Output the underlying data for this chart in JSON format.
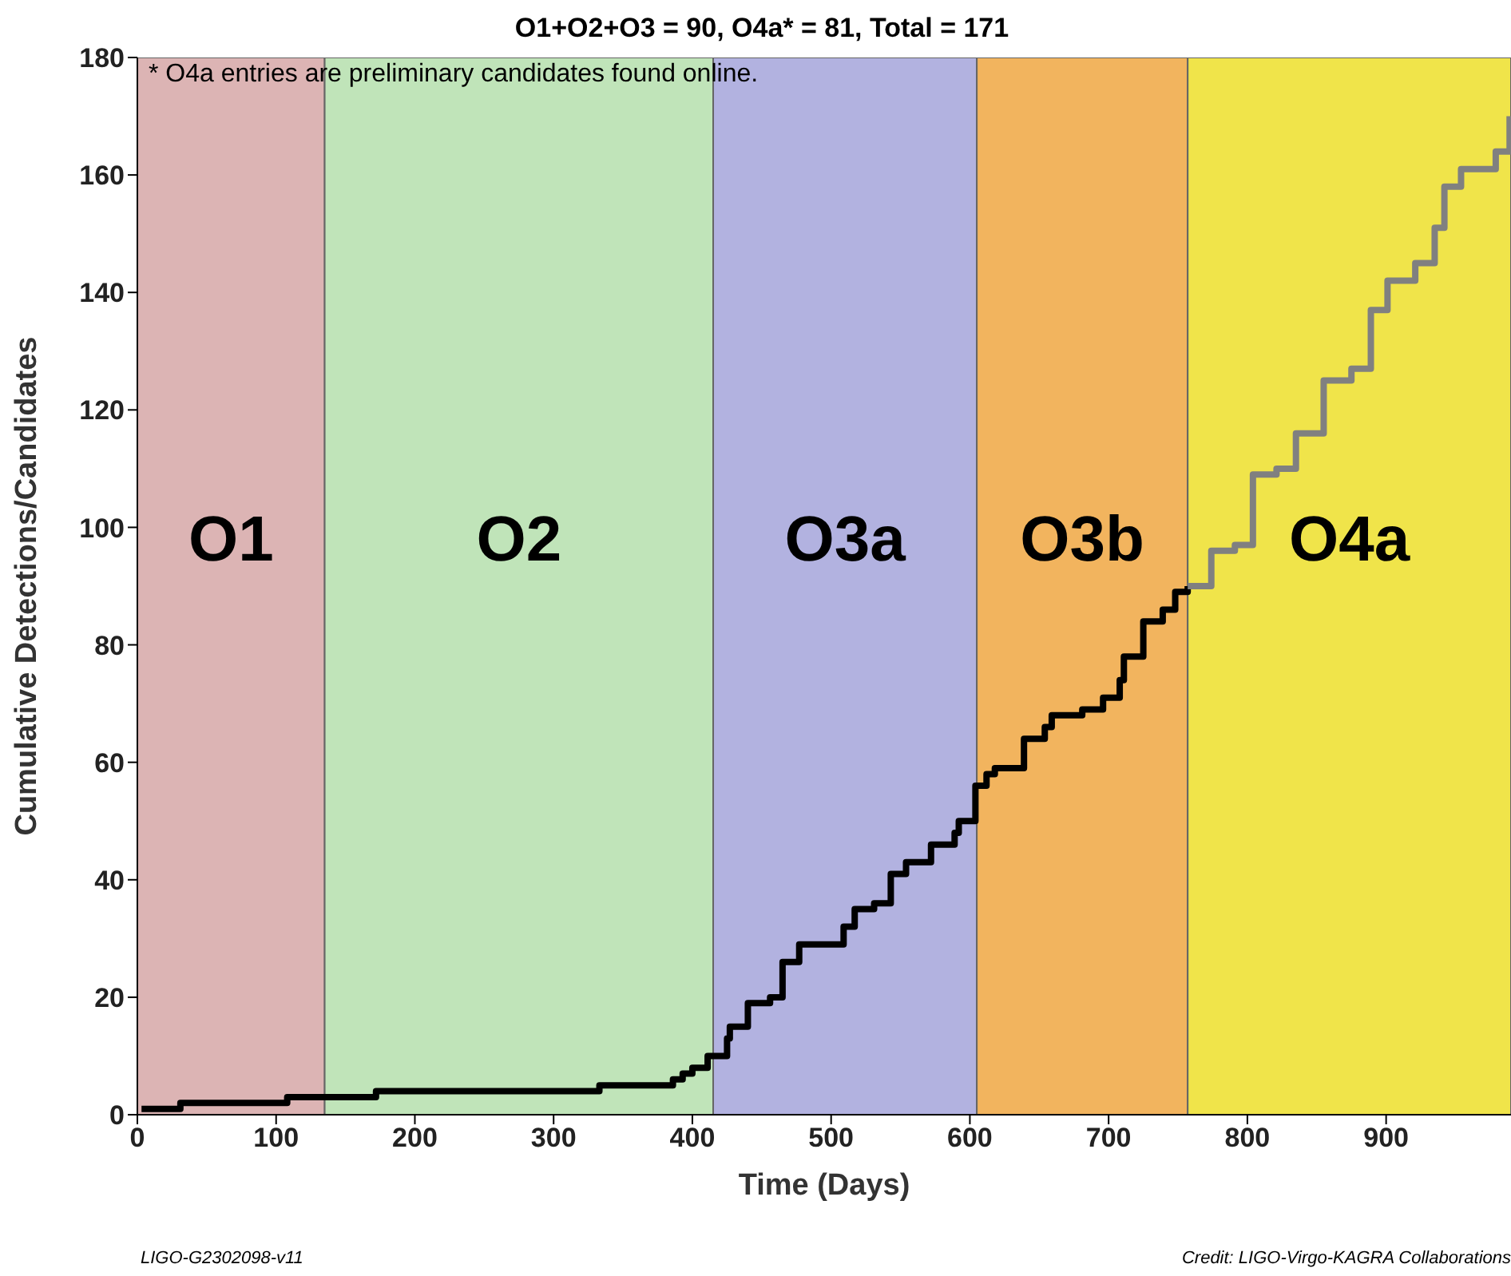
{
  "chart_data": {
    "type": "step",
    "title": "O1+O2+O3 = 90, O4a* = 81, Total = 171",
    "xlabel": "Time (Days)",
    "ylabel": "Cumulative Detections/Candidates",
    "xlim": [
      0,
      990
    ],
    "xticks": [
      0,
      100,
      200,
      300,
      400,
      500,
      600,
      700,
      800,
      900
    ],
    "ylim": [
      0,
      180
    ],
    "yticks": [
      0,
      20,
      40,
      60,
      80,
      100,
      120,
      140,
      160,
      180
    ],
    "grid": false,
    "legend": false,
    "line_style": "solid",
    "marker": "none",
    "bands": [
      {
        "axis": "x",
        "from": 0,
        "to": 135,
        "label": "O1",
        "color": "#dcb4b4"
      },
      {
        "axis": "x",
        "from": 135,
        "to": 415,
        "label": "O2",
        "color": "#c0e4b9"
      },
      {
        "axis": "x",
        "from": 415,
        "to": 605,
        "label": "O3a",
        "color": "#b2b2e0"
      },
      {
        "axis": "x",
        "from": 605,
        "to": 757,
        "label": "O3b",
        "color": "#f2b45e"
      },
      {
        "axis": "x",
        "from": 757,
        "to": 990,
        "label": "O4a",
        "color": "#f0e44a"
      }
    ],
    "series": [
      {
        "color": "#000000",
        "x": [
          3,
          31,
          108,
          172,
          333,
          386,
          393,
          400,
          411,
          425,
          427,
          440,
          456,
          465,
          477,
          497,
          509,
          517,
          531,
          543,
          554,
          572,
          589,
          592,
          604,
          612,
          618,
          630,
          639,
          654,
          659,
          681,
          696,
          708,
          711,
          725,
          739,
          748,
          757
        ],
        "values": [
          1,
          2,
          3,
          4,
          5,
          6,
          7,
          8,
          10,
          13,
          15,
          19,
          20,
          26,
          29,
          29,
          32,
          35,
          36,
          41,
          43,
          46,
          48,
          50,
          56,
          58,
          59,
          59,
          64,
          66,
          68,
          69,
          71,
          74,
          78,
          84,
          86,
          89,
          90
        ]
      },
      {
        "color": "#808080",
        "x": [
          757,
          760,
          774,
          791,
          804,
          821,
          835,
          855,
          875,
          889,
          901,
          921,
          935,
          942,
          954,
          979,
          989
        ],
        "values": [
          90,
          90,
          96,
          97,
          109,
          110,
          116,
          125,
          127,
          137,
          142,
          145,
          151,
          158,
          161,
          164,
          170
        ]
      }
    ],
    "annotations": [
      "* O4a entries are preliminary candidates found online.",
      "LIGO-G2302098-v11",
      "Credit: LIGO-Virgo-KAGRA Collaborations"
    ]
  }
}
